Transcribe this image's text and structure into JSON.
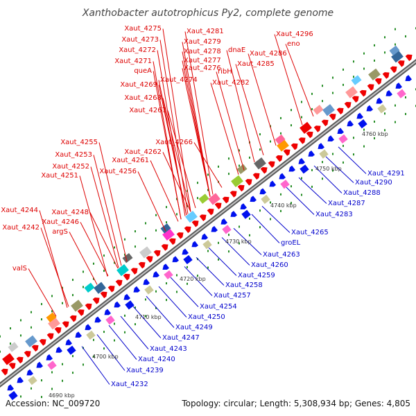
{
  "title": "Xanthobacter autotrophicus Py2, complete genome",
  "footer": {
    "accession": "Accession: NC_009720",
    "summary": "Topology: circular; Length: 5,308,934 bp; Genes: 4,805"
  },
  "colors": {
    "forward_label": "#dd0000",
    "reverse_label": "#0000cc",
    "forward_feature": "#ee0000",
    "reverse_feature": "#0011ee",
    "backbone": "#999999",
    "tick_dots": "#228b22"
  },
  "ticks": [
    {
      "label": "4690 kbp",
      "pos": 4690
    },
    {
      "label": "4700 kbp",
      "pos": 4700
    },
    {
      "label": "4710 kbp",
      "pos": 4710
    },
    {
      "label": "4720 kbp",
      "pos": 4720
    },
    {
      "label": "4730 kbp",
      "pos": 4730
    },
    {
      "label": "4740 kbp",
      "pos": 4740
    },
    {
      "label": "4750 kbp",
      "pos": 4750
    },
    {
      "label": "4760 kbp",
      "pos": 4760
    }
  ],
  "forward_genes": [
    {
      "name": "Xaut_4275"
    },
    {
      "name": "Xaut_4281"
    },
    {
      "name": "Xaut_4273"
    },
    {
      "name": "Xaut_4279"
    },
    {
      "name": "Xaut_4272"
    },
    {
      "name": "Xaut_4278"
    },
    {
      "name": "Xaut_4277"
    },
    {
      "name": "Xaut_4271"
    },
    {
      "name": "queA"
    },
    {
      "name": "Xaut_4276"
    },
    {
      "name": "Xaut_4274"
    },
    {
      "name": "Xaut_4269"
    },
    {
      "name": "Xaut_4268"
    },
    {
      "name": "Xaut_4267"
    },
    {
      "name": "ribH"
    },
    {
      "name": "Xaut_4282"
    },
    {
      "name": "dnaE"
    },
    {
      "name": "Xaut_4286"
    },
    {
      "name": "Xaut_4285"
    },
    {
      "name": "Xaut_4296"
    },
    {
      "name": "eno"
    },
    {
      "name": "Xaut_4266"
    },
    {
      "name": "Xaut_4255"
    },
    {
      "name": "Xaut_4262"
    },
    {
      "name": "Xaut_4261"
    },
    {
      "name": "Xaut_4253"
    },
    {
      "name": "Xaut_4256"
    },
    {
      "name": "Xaut_4252"
    },
    {
      "name": "Xaut_4251"
    },
    {
      "name": "Xaut_4244"
    },
    {
      "name": "Xaut_4248"
    },
    {
      "name": "Xaut_4246"
    },
    {
      "name": "Xaut_4242"
    },
    {
      "name": "argS"
    },
    {
      "name": "valS"
    }
  ],
  "reverse_genes": [
    {
      "name": "Xaut_4291"
    },
    {
      "name": "Xaut_4290"
    },
    {
      "name": "Xaut_4288"
    },
    {
      "name": "Xaut_4287"
    },
    {
      "name": "Xaut_4283"
    },
    {
      "name": "Xaut_4265"
    },
    {
      "name": "groEL"
    },
    {
      "name": "Xaut_4263"
    },
    {
      "name": "Xaut_4260"
    },
    {
      "name": "Xaut_4259"
    },
    {
      "name": "Xaut_4258"
    },
    {
      "name": "Xaut_4257"
    },
    {
      "name": "Xaut_4254"
    },
    {
      "name": "Xaut_4250"
    },
    {
      "name": "Xaut_4249"
    },
    {
      "name": "Xaut_4247"
    },
    {
      "name": "Xaut_4243"
    },
    {
      "name": "Xaut_4240"
    },
    {
      "name": "Xaut_4239"
    },
    {
      "name": "Xaut_4232"
    }
  ]
}
